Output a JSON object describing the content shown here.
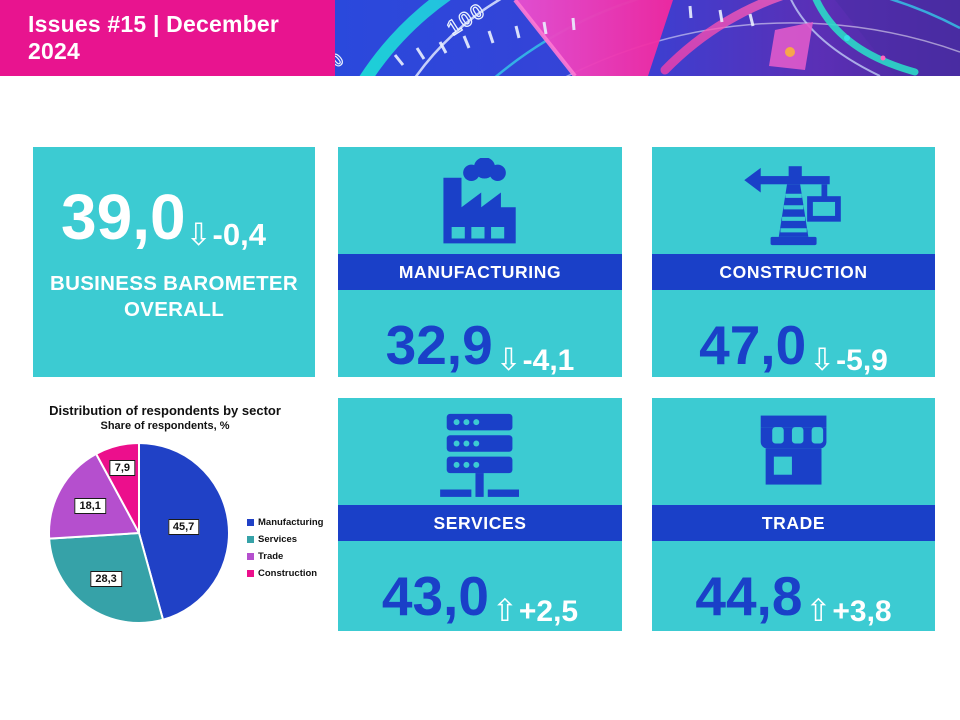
{
  "banner": {
    "title": "Issues #15 | December 2024",
    "gauge_labels": {
      "hundred": "100",
      "zero": "0"
    }
  },
  "icons": {
    "down_arrow": "⇩",
    "up_arrow": "⇧"
  },
  "overall_card": {
    "value": "39,0",
    "change": "-0,4",
    "direction": "down",
    "label_line1": "BUSINESS BAROMETER",
    "label_line2": "OVERALL"
  },
  "sector_cards": [
    {
      "name": "MANUFACTURING",
      "value": "32,9",
      "change": "-4,1",
      "direction": "down",
      "icon": "factory-icon"
    },
    {
      "name": "CONSTRUCTION",
      "value": "47,0",
      "change": "-5,9",
      "direction": "down",
      "icon": "crane-icon"
    },
    {
      "name": "SERVICES",
      "value": "43,0",
      "change": "+2,5",
      "direction": "up",
      "icon": "server-icon"
    },
    {
      "name": "TRADE",
      "value": "44,8",
      "change": "+3,8",
      "direction": "up",
      "icon": "store-icon"
    }
  ],
  "chart_data": {
    "type": "pie",
    "title": "Distribution of respondents by sector",
    "subtitle": "Share of respondents, %",
    "categories": [
      "Manufacturing",
      "Services",
      "Trade",
      "Construction"
    ],
    "values": [
      45.7,
      28.3,
      18.1,
      7.9
    ],
    "value_labels": [
      "45,7",
      "28,3",
      "18,1",
      "7,9"
    ],
    "colors": [
      "#2041C6",
      "#36A2A8",
      "#B54FCE",
      "#EC0F8C"
    ],
    "start_angle_deg": -90,
    "direction": "clockwise",
    "legend_position": "right",
    "label_radius": [
      0.5,
      0.63,
      0.62,
      0.75
    ]
  },
  "colors": {
    "card_teal": "#3CCBD2",
    "accent_blue": "#1A40C8",
    "banner_pink": "#E8148F"
  }
}
